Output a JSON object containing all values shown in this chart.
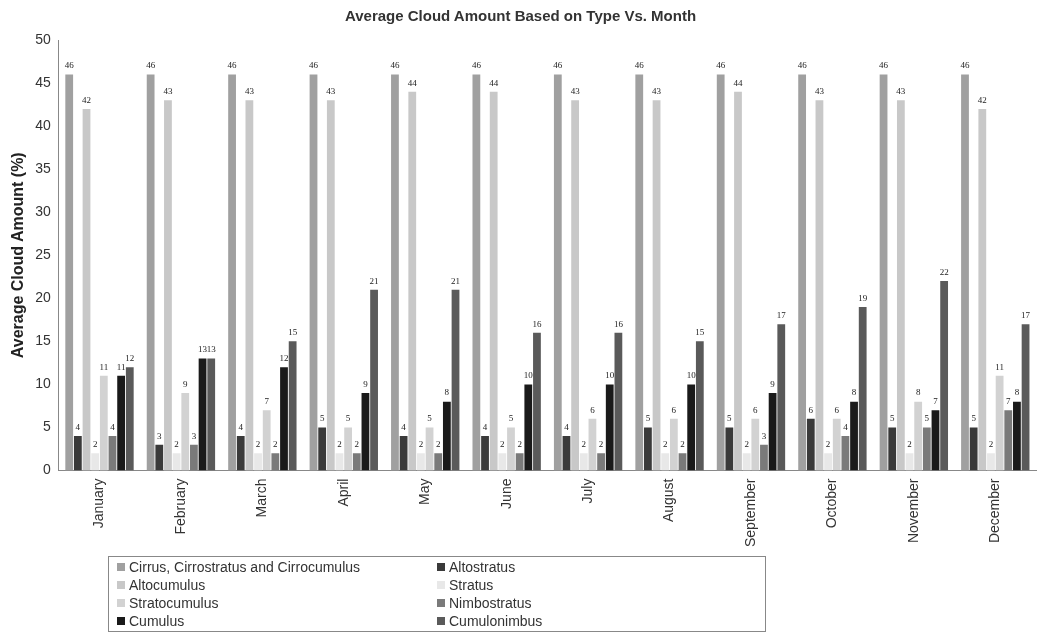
{
  "chart_data": {
    "type": "bar",
    "title": "Average Cloud Amount Based on Type Vs. Month",
    "ylabel": "Average Cloud Amount (%)",
    "categories": [
      "January",
      "February",
      "March",
      "April",
      "May",
      "June",
      "July",
      "August",
      "September",
      "October",
      "November",
      "December"
    ],
    "series": [
      {
        "name": "Cirrus, Cirrostratus and Cirrocumulus",
        "color": "#a0a0a0",
        "values": [
          46,
          46,
          46,
          46,
          46,
          46,
          46,
          46,
          46,
          46,
          46,
          46
        ]
      },
      {
        "name": "Altostratus",
        "color": "#3a3a3a",
        "values": [
          4,
          3,
          4,
          5,
          4,
          4,
          4,
          5,
          5,
          6,
          5,
          5
        ]
      },
      {
        "name": "Altocumulus",
        "color": "#c8c8c8",
        "values": [
          42,
          43,
          43,
          43,
          44,
          44,
          43,
          43,
          44,
          43,
          43,
          42
        ]
      },
      {
        "name": "Stratus",
        "color": "#e8e8e8",
        "values": [
          2,
          2,
          2,
          2,
          2,
          2,
          2,
          2,
          2,
          2,
          2,
          2
        ]
      },
      {
        "name": "Stratocumulus",
        "color": "#d2d2d2",
        "values": [
          11,
          9,
          7,
          5,
          5,
          5,
          6,
          6,
          6,
          6,
          8,
          11
        ]
      },
      {
        "name": "Nimbostratus",
        "color": "#7a7a7a",
        "values": [
          4,
          3,
          2,
          2,
          2,
          2,
          2,
          2,
          3,
          4,
          5,
          7
        ]
      },
      {
        "name": "Cumulus",
        "color": "#1a1a1a",
        "values": [
          11,
          13,
          12,
          9,
          8,
          10,
          10,
          10,
          9,
          8,
          7,
          8
        ]
      },
      {
        "name": "Cumulonimbus",
        "color": "#5a5a5a",
        "values": [
          12,
          13,
          15,
          21,
          21,
          16,
          16,
          15,
          17,
          19,
          22,
          17
        ]
      }
    ],
    "ylim": [
      0,
      50
    ],
    "yticks": [
      0,
      5,
      10,
      15,
      20,
      25,
      30,
      35,
      40,
      45,
      50
    ],
    "grid": false,
    "legend": "bottom",
    "data_labels": true
  }
}
